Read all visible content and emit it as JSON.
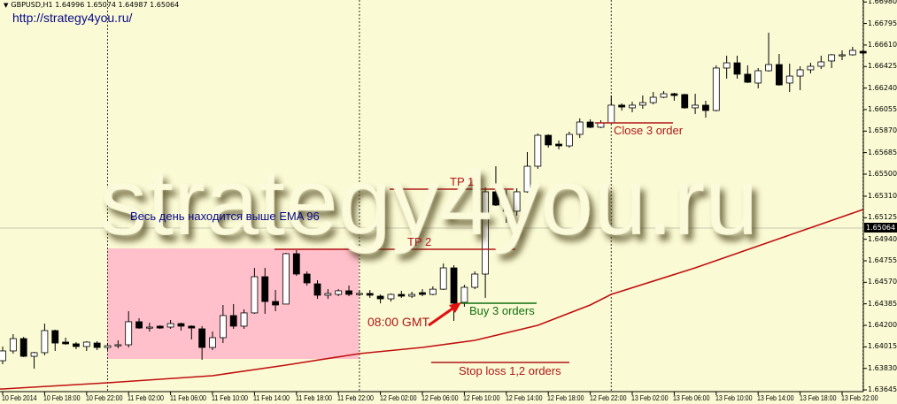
{
  "header": {
    "symbol": "GBPUSD,H1",
    "open": "1.64996",
    "high": "1.65074",
    "low": "1.64987",
    "close": "1.65064"
  },
  "url_text": "http://strategy4you.ru/",
  "watermark": "strategy4you.ru",
  "annotations": {
    "note_ema": "Весь день находится выше EMA 96",
    "tp1": "TP 1",
    "tp2": "TP 2",
    "buy": "Buy 3 orders",
    "entry_time": "08:00 GMT",
    "stop_loss": "Stop loss 1,2 orders",
    "close": "Close 3 order"
  },
  "colors": {
    "background": "#fafad4",
    "highlight_zone": "#ffc0cb",
    "ema": "#c01010",
    "annotation_red": "#b01818",
    "annotation_green": "#107010",
    "note_blue": "#0a0a8c"
  },
  "bid_label": "1.65064",
  "chart_data": {
    "type": "candlestick",
    "timeframe": "H1",
    "ylim": [
      1.63645,
      1.6698
    ],
    "grid": false,
    "price_ticks": [
      "1.66980",
      "1.66795",
      "1.66610",
      "1.66425",
      "1.66240",
      "1.66055",
      "1.65870",
      "1.65685",
      "1.65500",
      "1.65310",
      "1.65125",
      "1.64940",
      "1.64755",
      "1.64570",
      "1.64385",
      "1.64200",
      "1.64015",
      "1.63830",
      "1.63645"
    ],
    "time_ticks": [
      "10 Feb 2014",
      "10 Feb 18:00",
      "10 Feb 22:00",
      "11 Feb 02:00",
      "11 Feb 06:00",
      "11 Feb 10:00",
      "11 Feb 14:00",
      "11 Feb 18:00",
      "11 Feb 22:00",
      "12 Feb 02:00",
      "12 Feb 06:00",
      "12 Feb 10:00",
      "12 Feb 14:00",
      "12 Feb 18:00",
      "12 Feb 22:00",
      "13 Feb 02:00",
      "13 Feb 06:00",
      "13 Feb 10:00",
      "13 Feb 14:00",
      "13 Feb 18:00",
      "13 Feb 22:00"
    ],
    "day_separators": [
      "11 Feb 00:00",
      "12 Feb 00:00",
      "13 Feb 00:00",
      "14 Feb 00:00"
    ],
    "candle_fields": [
      "time",
      "open",
      "high",
      "low",
      "close"
    ],
    "candles": [
      [
        "10 Feb 14:00",
        1.63896,
        1.64018,
        1.63866,
        1.6398
      ],
      [
        "10 Feb 15:00",
        1.6398,
        1.64124,
        1.63957,
        1.64086
      ],
      [
        "10 Feb 16:00",
        1.64086,
        1.64101,
        1.63927,
        1.63934
      ],
      [
        "10 Feb 17:00",
        1.63934,
        1.63972,
        1.63828,
        1.63965
      ],
      [
        "10 Feb 18:00",
        1.63965,
        1.64215,
        1.63942,
        1.64155
      ],
      [
        "10 Feb 19:00",
        1.64155,
        1.64162,
        1.6398,
        1.64048
      ],
      [
        "10 Feb 20:00",
        1.64056,
        1.64094,
        1.64033,
        1.64041
      ],
      [
        "10 Feb 21:00",
        1.64041,
        1.64056,
        1.63995,
        1.64018
      ],
      [
        "10 Feb 22:00",
        1.64018,
        1.64063,
        1.6398,
        1.64056
      ],
      [
        "10 Feb 23:00",
        1.64048,
        1.64063,
        1.63987,
        1.6401
      ],
      [
        "11 Feb 00:00",
        1.6401,
        1.64048,
        1.63987,
        1.64025
      ],
      [
        "11 Feb 01:00",
        1.64033,
        1.64071,
        1.64003,
        1.64033
      ],
      [
        "11 Feb 02:00",
        1.64033,
        1.64322,
        1.6401,
        1.64231
      ],
      [
        "11 Feb 03:00",
        1.64231,
        1.64261,
        1.6417,
        1.64177
      ],
      [
        "11 Feb 04:00",
        1.64185,
        1.64223,
        1.64147,
        1.64185
      ],
      [
        "11 Feb 05:00",
        1.64193,
        1.642,
        1.6417,
        1.64177
      ],
      [
        "11 Feb 06:00",
        1.64185,
        1.64246,
        1.6417,
        1.64215
      ],
      [
        "11 Feb 07:00",
        1.64215,
        1.64223,
        1.64155,
        1.64193
      ],
      [
        "11 Feb 08:00",
        1.64193,
        1.642,
        1.64079,
        1.64177
      ],
      [
        "11 Feb 09:00",
        1.6417,
        1.64193,
        1.63904,
        1.6401
      ],
      [
        "11 Feb 10:00",
        1.6401,
        1.64147,
        1.63987,
        1.64094
      ],
      [
        "11 Feb 11:00",
        1.64094,
        1.64375,
        1.64048,
        1.64284
      ],
      [
        "11 Feb 12:00",
        1.64284,
        1.64383,
        1.6417,
        1.64193
      ],
      [
        "11 Feb 13:00",
        1.64193,
        1.64337,
        1.6417,
        1.64307
      ],
      [
        "11 Feb 14:00",
        1.64307,
        1.64694,
        1.64299,
        1.64618
      ],
      [
        "11 Feb 15:00",
        1.64618,
        1.64694,
        1.64299,
        1.64405
      ],
      [
        "11 Feb 16:00",
        1.64405,
        1.64504,
        1.64322,
        1.64375
      ],
      [
        "11 Feb 17:00",
        1.64383,
        1.64823,
        1.64383,
        1.64816
      ],
      [
        "11 Feb 18:00",
        1.64816,
        1.64846,
        1.64626,
        1.64641
      ],
      [
        "11 Feb 19:00",
        1.64641,
        1.64664,
        1.64542,
        1.64565
      ],
      [
        "11 Feb 20:00",
        1.64557,
        1.64588,
        1.64428,
        1.64459
      ],
      [
        "11 Feb 21:00",
        1.64459,
        1.64511,
        1.64428,
        1.64474
      ],
      [
        "11 Feb 22:00",
        1.64466,
        1.64511,
        1.64451,
        1.64497
      ],
      [
        "11 Feb 23:00",
        1.64497,
        1.64542,
        1.64451,
        1.64466
      ],
      [
        "12 Feb 00:00",
        1.64474,
        1.64504,
        1.64451,
        1.64474
      ],
      [
        "12 Feb 01:00",
        1.64474,
        1.64504,
        1.64436,
        1.64459
      ],
      [
        "12 Feb 02:00",
        1.64451,
        1.64466,
        1.64389,
        1.64428
      ],
      [
        "12 Feb 03:00",
        1.64428,
        1.64474,
        1.64405,
        1.64466
      ],
      [
        "12 Feb 04:00",
        1.64466,
        1.64497,
        1.64436,
        1.64451
      ],
      [
        "12 Feb 05:00",
        1.64451,
        1.64489,
        1.64436,
        1.64466
      ],
      [
        "12 Feb 06:00",
        1.64481,
        1.64511,
        1.64451,
        1.64466
      ],
      [
        "12 Feb 07:00",
        1.64466,
        1.64535,
        1.64459,
        1.64511
      ],
      [
        "12 Feb 08:00",
        1.64511,
        1.64732,
        1.64504,
        1.64694
      ],
      [
        "12 Feb 09:00",
        1.64694,
        1.64717,
        1.64238,
        1.6439
      ],
      [
        "12 Feb 10:00",
        1.64398,
        1.64549,
        1.6436,
        1.64527
      ],
      [
        "12 Feb 11:00",
        1.64527,
        1.64664,
        1.64511,
        1.64641
      ],
      [
        "12 Feb 12:00",
        1.64641,
        1.65386,
        1.64436,
        1.65348
      ],
      [
        "12 Feb 13:00",
        1.65348,
        1.65568,
        1.65226,
        1.65234
      ],
      [
        "12 Feb 14:00",
        1.65226,
        1.65363,
        1.65082,
        1.65181
      ],
      [
        "12 Feb 15:00",
        1.65181,
        1.65378,
        1.65143,
        1.65348
      ],
      [
        "12 Feb 16:00",
        1.65348,
        1.6569,
        1.6534,
        1.65568
      ],
      [
        "12 Feb 17:00",
        1.65568,
        1.65849,
        1.65546,
        1.65834
      ],
      [
        "12 Feb 18:00",
        1.65834,
        1.65842,
        1.65728,
        1.65751
      ],
      [
        "12 Feb 19:00",
        1.65758,
        1.65789,
        1.65713,
        1.65743
      ],
      [
        "12 Feb 20:00",
        1.65743,
        1.65865,
        1.65728,
        1.65842
      ],
      [
        "12 Feb 21:00",
        1.65842,
        1.65979,
        1.65811,
        1.65948
      ],
      [
        "12 Feb 22:00",
        1.65948,
        1.65971,
        1.65895,
        1.65903
      ],
      [
        "12 Feb 23:00",
        1.65903,
        1.65963,
        1.65895,
        1.65941
      ],
      [
        "13 Feb 00:00",
        1.65941,
        1.66176,
        1.65933,
        1.66093
      ],
      [
        "13 Feb 01:00",
        1.66093,
        1.66108,
        1.66047,
        1.66077
      ],
      [
        "13 Feb 02:00",
        1.6607,
        1.66123,
        1.66032,
        1.66093
      ],
      [
        "13 Feb 03:00",
        1.66093,
        1.66176,
        1.66062,
        1.66115
      ],
      [
        "13 Feb 04:00",
        1.66115,
        1.66207,
        1.661,
        1.66161
      ],
      [
        "13 Feb 05:00",
        1.66161,
        1.66214,
        1.66153,
        1.66191
      ],
      [
        "13 Feb 06:00",
        1.66191,
        1.66199,
        1.66131,
        1.66176
      ],
      [
        "13 Feb 07:00",
        1.66184,
        1.66191,
        1.66062,
        1.6607
      ],
      [
        "13 Feb 08:00",
        1.6607,
        1.66191,
        1.66017,
        1.66093
      ],
      [
        "13 Feb 09:00",
        1.66093,
        1.66131,
        1.65986,
        1.66047
      ],
      [
        "13 Feb 10:00",
        1.66047,
        1.66435,
        1.66039,
        1.66412
      ],
      [
        "13 Feb 11:00",
        1.66412,
        1.66518,
        1.66321,
        1.66457
      ],
      [
        "13 Feb 12:00",
        1.66457,
        1.66518,
        1.66321,
        1.66359
      ],
      [
        "13 Feb 13:00",
        1.66359,
        1.66435,
        1.66283,
        1.6629
      ],
      [
        "13 Feb 14:00",
        1.66283,
        1.66412,
        1.66237,
        1.66389
      ],
      [
        "13 Feb 15:00",
        1.66389,
        1.66716,
        1.66381,
        1.66442
      ],
      [
        "13 Feb 16:00",
        1.66442,
        1.66533,
        1.6626,
        1.66267
      ],
      [
        "13 Feb 17:00",
        1.66283,
        1.6645,
        1.66207,
        1.66343
      ],
      [
        "13 Feb 18:00",
        1.66343,
        1.66427,
        1.66222,
        1.66397
      ],
      [
        "13 Feb 19:00",
        1.66397,
        1.66457,
        1.66366,
        1.66427
      ],
      [
        "13 Feb 20:00",
        1.66427,
        1.66518,
        1.66404,
        1.66465
      ],
      [
        "13 Feb 21:00",
        1.66473,
        1.66533,
        1.66412,
        1.66526
      ],
      [
        "13 Feb 22:00",
        1.66526,
        1.66564,
        1.6648,
        1.66526
      ],
      [
        "13 Feb 23:00",
        1.66526,
        1.66594,
        1.66518,
        1.66564
      ],
      [
        "14 Feb 00:00",
        1.66556,
        1.66571,
        1.66518,
        1.66541
      ]
    ],
    "ema": {
      "period": 96,
      "points": [
        [
          "10 Feb 14:00",
          1.63653
        ],
        [
          "11 Feb 00:00",
          1.63706
        ],
        [
          "11 Feb 10:00",
          1.63767
        ],
        [
          "11 Feb 17:00",
          1.63858
        ],
        [
          "12 Feb 00:00",
          1.63957
        ],
        [
          "12 Feb 06:00",
          1.6401
        ],
        [
          "12 Feb 11:00",
          1.64071
        ],
        [
          "12 Feb 17:00",
          1.642
        ],
        [
          "12 Feb 22:00",
          1.64375
        ],
        [
          "13 Feb 00:00",
          1.64466
        ],
        [
          "13 Feb 08:00",
          1.64694
        ],
        [
          "13 Feb 16:00",
          1.64945
        ],
        [
          "14 Feb 00:00",
          1.65196
        ]
      ]
    },
    "bid_price": 1.65064
  }
}
